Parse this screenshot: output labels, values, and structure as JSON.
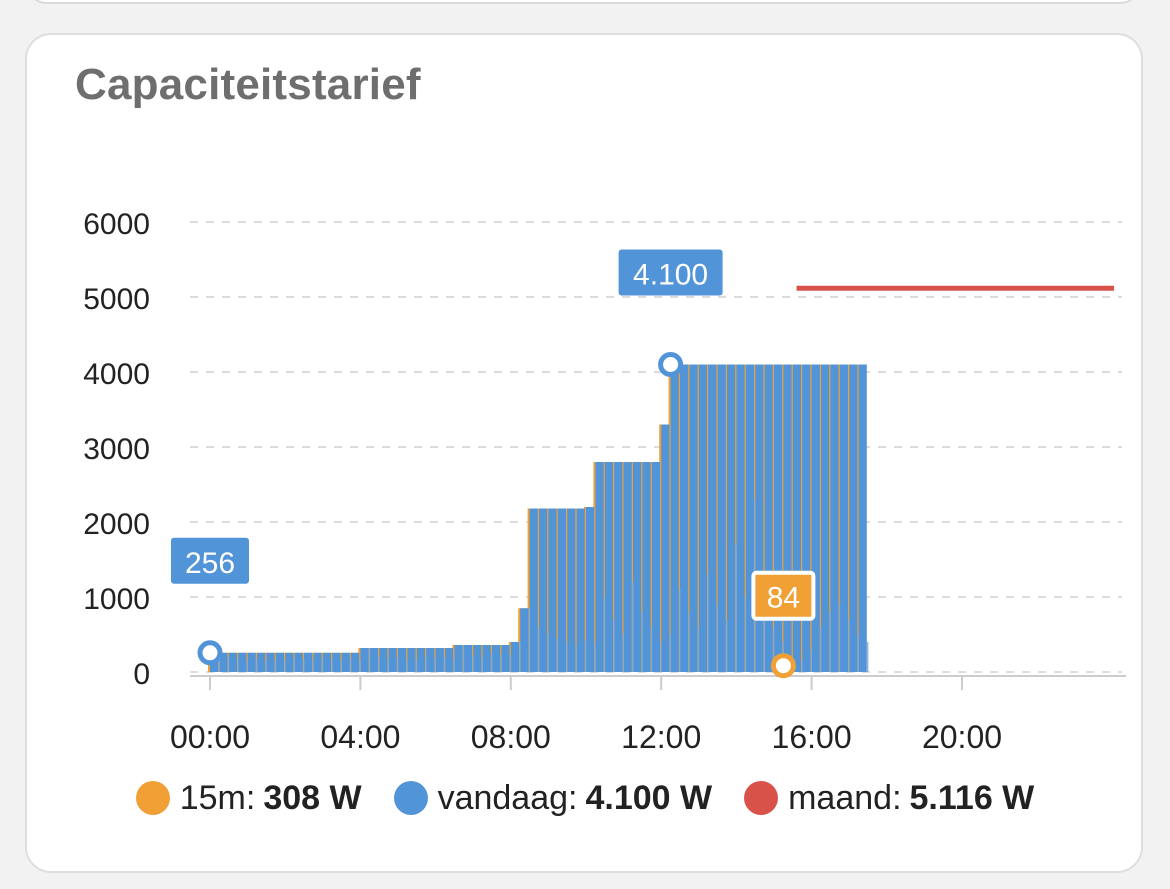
{
  "card": {
    "title": "Capaciteitstarief"
  },
  "chart_data": {
    "type": "bar",
    "ylim": [
      0,
      6000
    ],
    "yticks": [
      0,
      1000,
      2000,
      3000,
      4000,
      5000,
      6000
    ],
    "ytick_labels": [
      "0",
      "1000",
      "2000",
      "3000",
      "4000",
      "5000",
      "6000"
    ],
    "xlim_hours": [
      0,
      24
    ],
    "xticks_hours": [
      0,
      4,
      8,
      12,
      16,
      20
    ],
    "xtick_labels": [
      "00:00",
      "04:00",
      "08:00",
      "12:00",
      "16:00",
      "20:00"
    ],
    "grid": true,
    "legend_position": "bottom",
    "series": [
      {
        "name": "vandaag",
        "kind": "step-bar",
        "color": "#5294d8",
        "x_hours": [
          0,
          0.25,
          0.5,
          0.75,
          1,
          1.25,
          1.5,
          1.75,
          2,
          2.25,
          2.5,
          2.75,
          3,
          3.25,
          3.5,
          3.75,
          4,
          4.25,
          4.5,
          4.75,
          5,
          5.25,
          5.5,
          5.75,
          6,
          6.25,
          6.5,
          6.75,
          7,
          7.25,
          7.5,
          7.75,
          8,
          8.25,
          8.5,
          8.75,
          9,
          9.25,
          9.5,
          9.75,
          10,
          10.25,
          10.5,
          10.75,
          11,
          11.25,
          11.5,
          11.75,
          12,
          12.25,
          12.5,
          12.75,
          13,
          13.25,
          13.5,
          13.75,
          14,
          14.25,
          14.5,
          14.75,
          15,
          15.25,
          15.5,
          15.75,
          16,
          16.25,
          16.5,
          16.75,
          17,
          17.25
        ],
        "values": [
          256,
          256,
          256,
          256,
          256,
          256,
          256,
          256,
          256,
          256,
          256,
          256,
          256,
          256,
          256,
          256,
          320,
          320,
          320,
          320,
          320,
          320,
          320,
          320,
          320,
          320,
          360,
          360,
          360,
          360,
          360,
          360,
          400,
          850,
          2180,
          2180,
          2180,
          2180,
          2180,
          2180,
          2200,
          2800,
          2800,
          2800,
          2800,
          2800,
          2800,
          2800,
          3300,
          4100,
          4100,
          4100,
          4100,
          4100,
          4100,
          4100,
          4100,
          4100,
          4100,
          4100,
          4100,
          4100,
          4100,
          4100,
          4100,
          4100,
          4100,
          4100,
          4100,
          4100
        ]
      },
      {
        "name": "15m",
        "kind": "bar",
        "color": "#f0a035",
        "x_hours": [
          0,
          0.25,
          0.5,
          0.75,
          1,
          1.25,
          1.5,
          1.75,
          2,
          2.25,
          2.5,
          2.75,
          3,
          3.25,
          3.5,
          3.75,
          4,
          4.25,
          4.5,
          4.75,
          5,
          5.25,
          5.5,
          5.75,
          6,
          6.25,
          6.5,
          6.75,
          7,
          7.25,
          7.5,
          7.75,
          8,
          8.25,
          8.5,
          8.75,
          9,
          9.25,
          9.5,
          9.75,
          10,
          10.25,
          10.5,
          10.75,
          11,
          11.25,
          11.5,
          11.75,
          12,
          12.25,
          12.5,
          12.75,
          13,
          13.25,
          13.5,
          13.75,
          14,
          14.25,
          14.5,
          14.75,
          15,
          15.25,
          15.5,
          15.75,
          16,
          16.25,
          16.5,
          16.75,
          17,
          17.25
        ],
        "values": [
          256,
          200,
          180,
          160,
          180,
          150,
          170,
          160,
          190,
          170,
          160,
          180,
          170,
          160,
          180,
          150,
          320,
          200,
          180,
          190,
          170,
          160,
          200,
          180,
          190,
          170,
          360,
          220,
          200,
          260,
          240,
          220,
          400,
          850,
          600,
          500,
          450,
          400,
          350,
          420,
          380,
          1000,
          700,
          500,
          1200,
          800,
          600,
          400,
          500,
          1100,
          800,
          600,
          1300,
          900,
          700,
          1700,
          1000,
          2300,
          900,
          600,
          400,
          84,
          150,
          300,
          600,
          800,
          900,
          700,
          500,
          400
        ]
      },
      {
        "name": "maand",
        "kind": "line",
        "color": "#d9524a",
        "x_hours": [
          15.6,
          24
        ],
        "values": [
          5116,
          5116
        ]
      }
    ],
    "annotations": [
      {
        "label": "256",
        "x_hours": 0,
        "value": 256,
        "color": "#5294d8"
      },
      {
        "label": "4.100",
        "x_hours": 12.25,
        "value": 4100,
        "color": "#5294d8"
      },
      {
        "label": "84",
        "x_hours": 15.25,
        "value": 84,
        "color": "#f0a035"
      }
    ]
  },
  "legend": {
    "items": [
      {
        "name": "15m:",
        "value": "308 W",
        "color": "#f0a035"
      },
      {
        "name": "vandaag:",
        "value": "4.100 W",
        "color": "#5294d8"
      },
      {
        "name": "maand:",
        "value": "5.116 W",
        "color": "#d9524a"
      }
    ]
  }
}
